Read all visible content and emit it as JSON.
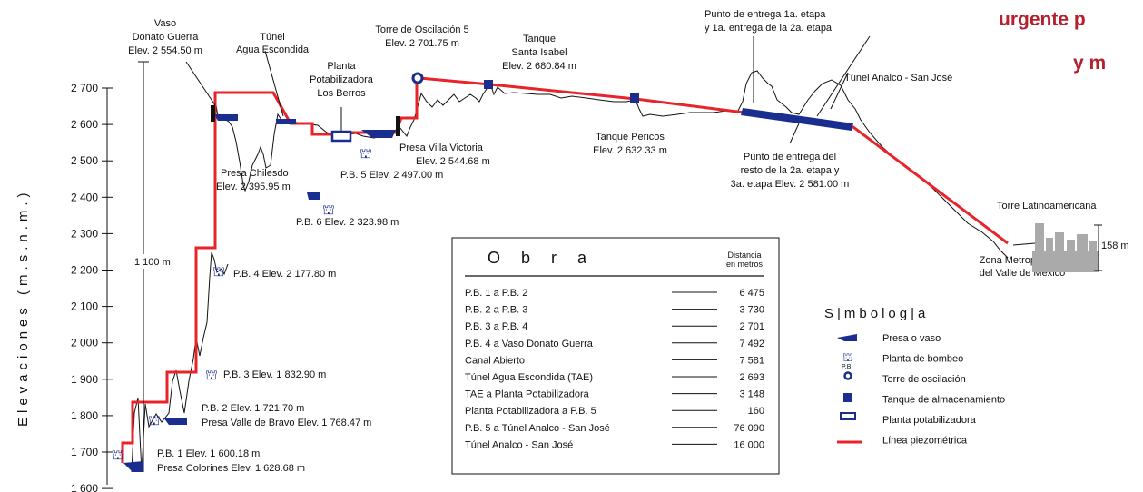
{
  "title_fragment": [
    "urgente p",
    "y m"
  ],
  "y_axis": {
    "label": "Elevaciones     (m.s.n.m.)",
    "ticks": [
      "2 700",
      "2 600",
      "2 500",
      "2 400",
      "2 300",
      "2 200",
      "2 100",
      "2 000",
      "1 900",
      "1 800",
      "1 700",
      "1 600"
    ]
  },
  "labels": {
    "vaso": [
      "Vaso",
      "Donato Guerra",
      "Elev. 2 554.50 m"
    ],
    "tunel_ae": [
      "Túnel",
      "Agua Escondida"
    ],
    "planta": [
      "Planta",
      "Potabilizadora",
      "Los Berros"
    ],
    "torre5": [
      "Torre de Oscilación 5",
      "Elev. 2 701.75 m"
    ],
    "tanque_si": [
      "Tanque",
      "Santa Isabel",
      "Elev. 2 680.84 m"
    ],
    "punto1": [
      "Punto de entrega 1a. etapa",
      "y 1a. entrega de la 2a. etapa"
    ],
    "tunel_as": "Túnel Analco - San José",
    "presa_vv": [
      "Presa Villa Victoria",
      "Elev. 2 544.68 m"
    ],
    "tanque_p": [
      "Tanque Pericos",
      "Elev. 2 632.33 m"
    ],
    "punto2": [
      "Punto de entrega del",
      "resto de la 2a. etapa y",
      "3a. etapa  Elev. 2 581.00 m"
    ],
    "presa_ch": [
      "Presa Chilesdo",
      "Elev. 2 395.95 m"
    ],
    "pb5": "P.B. 5  Elev. 2 497.00 m",
    "pb6": "P.B. 6  Elev. 2 323.98 m",
    "torre_lat": "Torre Latinoamericana",
    "h158": "158 m",
    "zona": [
      "Zona Metropolitana",
      "del Valle de México"
    ],
    "h1100": "1 100 m",
    "pb4": "P.B. 4  Elev. 2 177.80 m",
    "pb3": "P.B. 3  Elev. 1 832.90 m",
    "pb2": [
      "P.B. 2  Elev. 1 721.70 m",
      "Presa Valle de Bravo  Elev. 1 768.47 m"
    ],
    "pb1": [
      "P.B. 1  Elev. 1 600.18 m",
      "Presa Colorines  Elev. 1 628.68 m"
    ]
  },
  "table": {
    "title": "O b r a",
    "dist_header": [
      "Distancia",
      "en metros"
    ],
    "rows": [
      {
        "obra": "P.B. 1  a  P.B. 2",
        "dist": "6 475"
      },
      {
        "obra": "P.B. 2  a  P.B. 3",
        "dist": "3 730"
      },
      {
        "obra": "P.B. 3  a  P.B. 4",
        "dist": "2 701"
      },
      {
        "obra": "P.B. 4  a Vaso Donato Guerra",
        "dist": "7 492"
      },
      {
        "obra": "Canal Abierto",
        "dist": "7 581"
      },
      {
        "obra": "Túnel Agua Escondida (TAE)",
        "dist": "2 693"
      },
      {
        "obra": "TAE a Planta Potabilizadora",
        "dist": "3 148"
      },
      {
        "obra": "Planta Potabilizadora a P.B. 5",
        "dist": "160"
      },
      {
        "obra": "P.B. 5  a Túnel Analco - San José",
        "dist": "76 090"
      },
      {
        "obra": "Túnel Analco - San José",
        "dist": "16 000"
      }
    ]
  },
  "legend": {
    "title": "S|mbolog|a",
    "pb_abbrev": "P.B.",
    "items": [
      {
        "icon": "dam-icon",
        "label": "Presa o vaso"
      },
      {
        "icon": "pump-station-icon",
        "label": "Planta de bombeo"
      },
      {
        "icon": "surge-tower-icon",
        "label": "Torre de oscilación"
      },
      {
        "icon": "storage-tank-icon",
        "label": "Tanque de almacenamiento"
      },
      {
        "icon": "treatment-plant-icon",
        "label": "Planta potabilizadora"
      },
      {
        "icon": "piezometric-line-icon",
        "label": "Línea piezométrica"
      }
    ]
  },
  "colors": {
    "piezometric_line": "#e8232a",
    "symbol_blue": "#1a2e8f",
    "title_red": "#b4202e",
    "building_gray": "#aaaaaa"
  }
}
